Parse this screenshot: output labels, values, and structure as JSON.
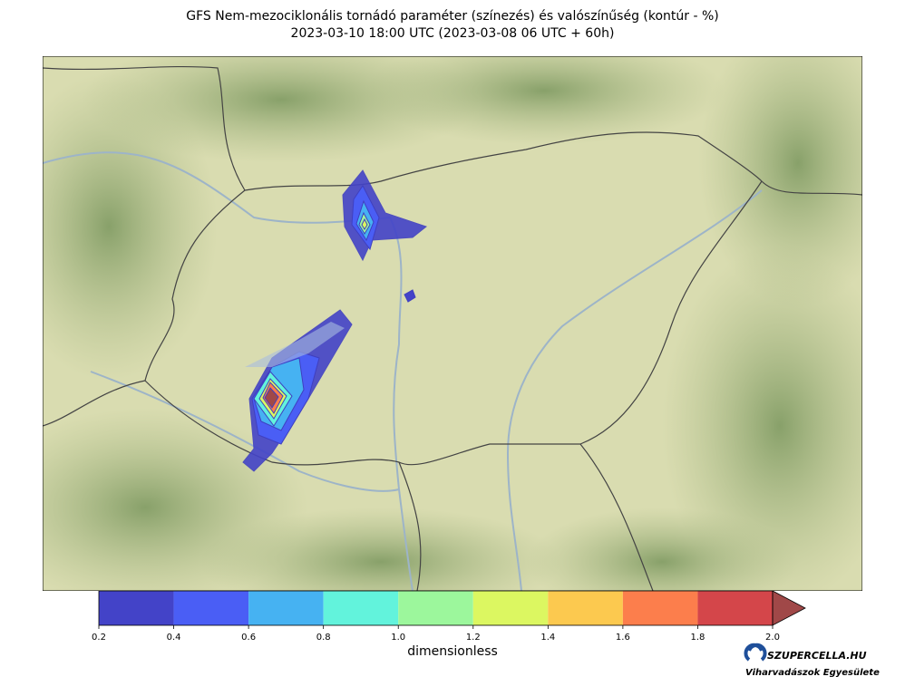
{
  "title": {
    "line1": "GFS Nem-mezociklonális tornádó paraméter (színezés) és valószínűség (kontúr - %)",
    "line2": "2023-03-10 18:00 UTC (2023-03-08 06 UTC + 60h)"
  },
  "colorbar": {
    "label": "dimensionless",
    "lim": [
      0.2,
      2.0
    ],
    "ticks": [
      0.2,
      0.4,
      0.6,
      0.8,
      {
        "value": 1.0,
        "label": "1.0"
      },
      1.2,
      1.4,
      1.6,
      1.8,
      {
        "value": 2.0,
        "label": "2.0"
      }
    ],
    "colors": [
      "#4343c8",
      "#4a5ef5",
      "#46b2f2",
      "#62f3dc",
      "#9cf79c",
      "#dcf761",
      "#fcc94f",
      "#fc7e4c",
      "#d4464a"
    ],
    "extend_color": "#a04848"
  },
  "logo": {
    "name": "SZUPERCELLA.HU",
    "tagline": "Viharvadászok Egyesülete"
  }
}
